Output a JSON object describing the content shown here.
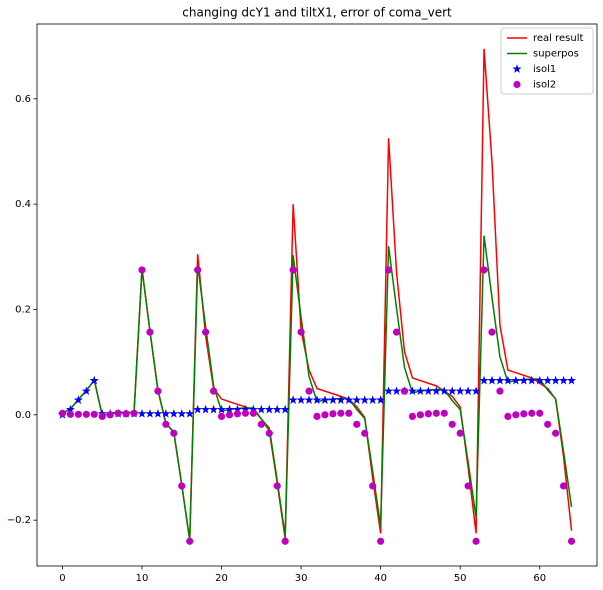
{
  "chart_data": {
    "type": "line",
    "title": "changing dcY1 and tiltX1, error of coma_vert",
    "x": [
      0,
      1,
      2,
      3,
      4,
      5,
      6,
      7,
      8,
      9,
      10,
      11,
      12,
      13,
      14,
      15,
      16,
      17,
      18,
      19,
      20,
      21,
      22,
      23,
      24,
      25,
      26,
      27,
      28,
      29,
      30,
      31,
      32,
      33,
      34,
      35,
      36,
      37,
      38,
      39,
      40,
      41,
      42,
      43,
      44,
      45,
      46,
      47,
      48,
      49,
      50,
      51,
      52,
      53,
      54,
      55,
      56,
      57,
      58,
      59,
      60,
      61,
      62,
      63,
      64
    ],
    "series": [
      {
        "name": "real result",
        "color": "#ff0000",
        "marker": "none",
        "values": [
          0.003,
          0.011,
          0.029,
          0.046,
          0.066,
          -0.001,
          0.002,
          0.005,
          0.004,
          0.005,
          0.277,
          0.159,
          0.047,
          -0.016,
          -0.033,
          -0.133,
          -0.238,
          0.305,
          0.15,
          0.05,
          0.03,
          0.025,
          0.02,
          0.015,
          0.01,
          -0.008,
          -0.03,
          -0.13,
          -0.235,
          0.4,
          0.16,
          0.085,
          0.05,
          0.045,
          0.04,
          0.035,
          0.03,
          0.015,
          -0.005,
          -0.12,
          -0.225,
          0.525,
          0.27,
          0.12,
          0.07,
          0.065,
          0.06,
          0.055,
          0.045,
          0.035,
          0.015,
          -0.1,
          -0.225,
          0.695,
          0.48,
          0.17,
          0.085,
          0.08,
          0.075,
          0.07,
          0.06,
          0.05,
          0.03,
          -0.08,
          -0.22
        ]
      },
      {
        "name": "superpos",
        "color": "#008000",
        "marker": "none",
        "values": [
          0.003,
          0.011,
          0.029,
          0.046,
          0.066,
          -0.001,
          0.002,
          0.005,
          0.004,
          0.005,
          0.277,
          0.159,
          0.047,
          -0.016,
          -0.033,
          -0.133,
          -0.238,
          0.285,
          0.167,
          0.055,
          0.007,
          0.01,
          0.012,
          0.013,
          0.013,
          -0.008,
          -0.025,
          -0.125,
          -0.23,
          0.303,
          0.185,
          0.073,
          0.025,
          0.028,
          0.03,
          0.031,
          0.031,
          0.01,
          -0.007,
          -0.107,
          -0.212,
          0.32,
          0.202,
          0.09,
          0.042,
          0.045,
          0.047,
          0.048,
          0.048,
          0.027,
          0.01,
          -0.09,
          -0.195,
          0.34,
          0.222,
          0.11,
          0.062,
          0.065,
          0.067,
          0.068,
          0.068,
          0.047,
          0.03,
          -0.07,
          -0.175
        ]
      },
      {
        "name": "isol1",
        "color": "#0000ff",
        "marker": "star",
        "values": [
          0,
          0.01,
          0.028,
          0.045,
          0.065,
          0.002,
          0.002,
          0.002,
          0.002,
          0.002,
          0.002,
          0.002,
          0.002,
          0.002,
          0.002,
          0.002,
          0.002,
          0.01,
          0.01,
          0.01,
          0.01,
          0.01,
          0.01,
          0.01,
          0.01,
          0.01,
          0.01,
          0.01,
          0.01,
          0.028,
          0.028,
          0.028,
          0.028,
          0.028,
          0.028,
          0.028,
          0.028,
          0.028,
          0.028,
          0.028,
          0.028,
          0.045,
          0.045,
          0.045,
          0.045,
          0.045,
          0.045,
          0.045,
          0.045,
          0.045,
          0.045,
          0.045,
          0.045,
          0.065,
          0.065,
          0.065,
          0.065,
          0.065,
          0.065,
          0.065,
          0.065,
          0.065,
          0.065,
          0.065,
          0.065
        ]
      },
      {
        "name": "isol2",
        "color": "#bf00bf",
        "marker": "circle",
        "values": [
          0.003,
          0.001,
          0.001,
          0.001,
          0.001,
          -0.003,
          0,
          0.003,
          0.002,
          0.003,
          0.275,
          0.157,
          0.045,
          -0.018,
          -0.035,
          -0.135,
          -0.24,
          0.275,
          0.157,
          0.045,
          -0.003,
          0,
          0.002,
          0.003,
          0.003,
          -0.018,
          -0.035,
          -0.135,
          -0.24,
          0.275,
          0.157,
          0.045,
          -0.003,
          0,
          0.002,
          0.003,
          0.003,
          -0.018,
          -0.035,
          -0.135,
          -0.24,
          0.275,
          0.157,
          0.045,
          -0.003,
          0,
          0.002,
          0.003,
          0.003,
          -0.018,
          -0.035,
          -0.135,
          -0.24,
          0.275,
          0.157,
          0.045,
          -0.003,
          0,
          0.002,
          0.003,
          0.003,
          -0.018,
          -0.035,
          -0.135,
          -0.24
        ]
      }
    ],
    "xlim": [
      -3.2,
      67.2
    ],
    "ylim": [
      -0.287,
      0.742
    ],
    "xticks": [
      0,
      10,
      20,
      30,
      40,
      50,
      60
    ],
    "yticks": [
      {
        "value": -0.2,
        "label": "−0.2"
      },
      {
        "value": 0,
        "label": "0.0"
      },
      {
        "value": 0.2,
        "label": "0.2"
      },
      {
        "value": 0.4,
        "label": "0.4"
      },
      {
        "value": 0.6,
        "label": "0.6"
      }
    ],
    "grid": false,
    "legend": "upper right"
  }
}
